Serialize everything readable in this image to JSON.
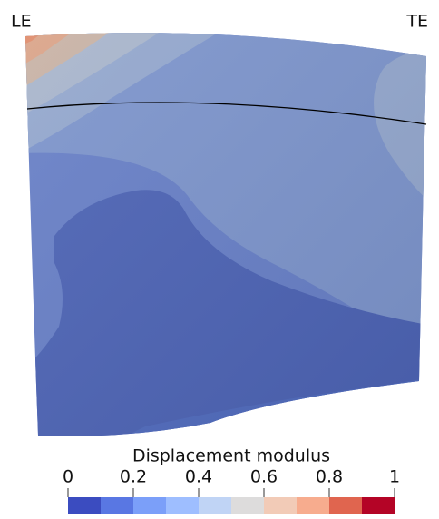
{
  "labels": {
    "leading_edge": "LE",
    "trailing_edge": "TE"
  },
  "colorbar": {
    "title": "Displacement modulus",
    "range": [
      0,
      1
    ],
    "ticks": [
      0,
      0.2,
      0.4,
      0.6,
      0.8,
      1
    ],
    "colors": [
      "#3b4cc0",
      "#5977e3",
      "#7b9ff9",
      "#9ebeff",
      "#c0d4f5",
      "#dddcdc",
      "#f2cbb7",
      "#f7ac8e",
      "#e0654f",
      "#b40426"
    ]
  }
}
